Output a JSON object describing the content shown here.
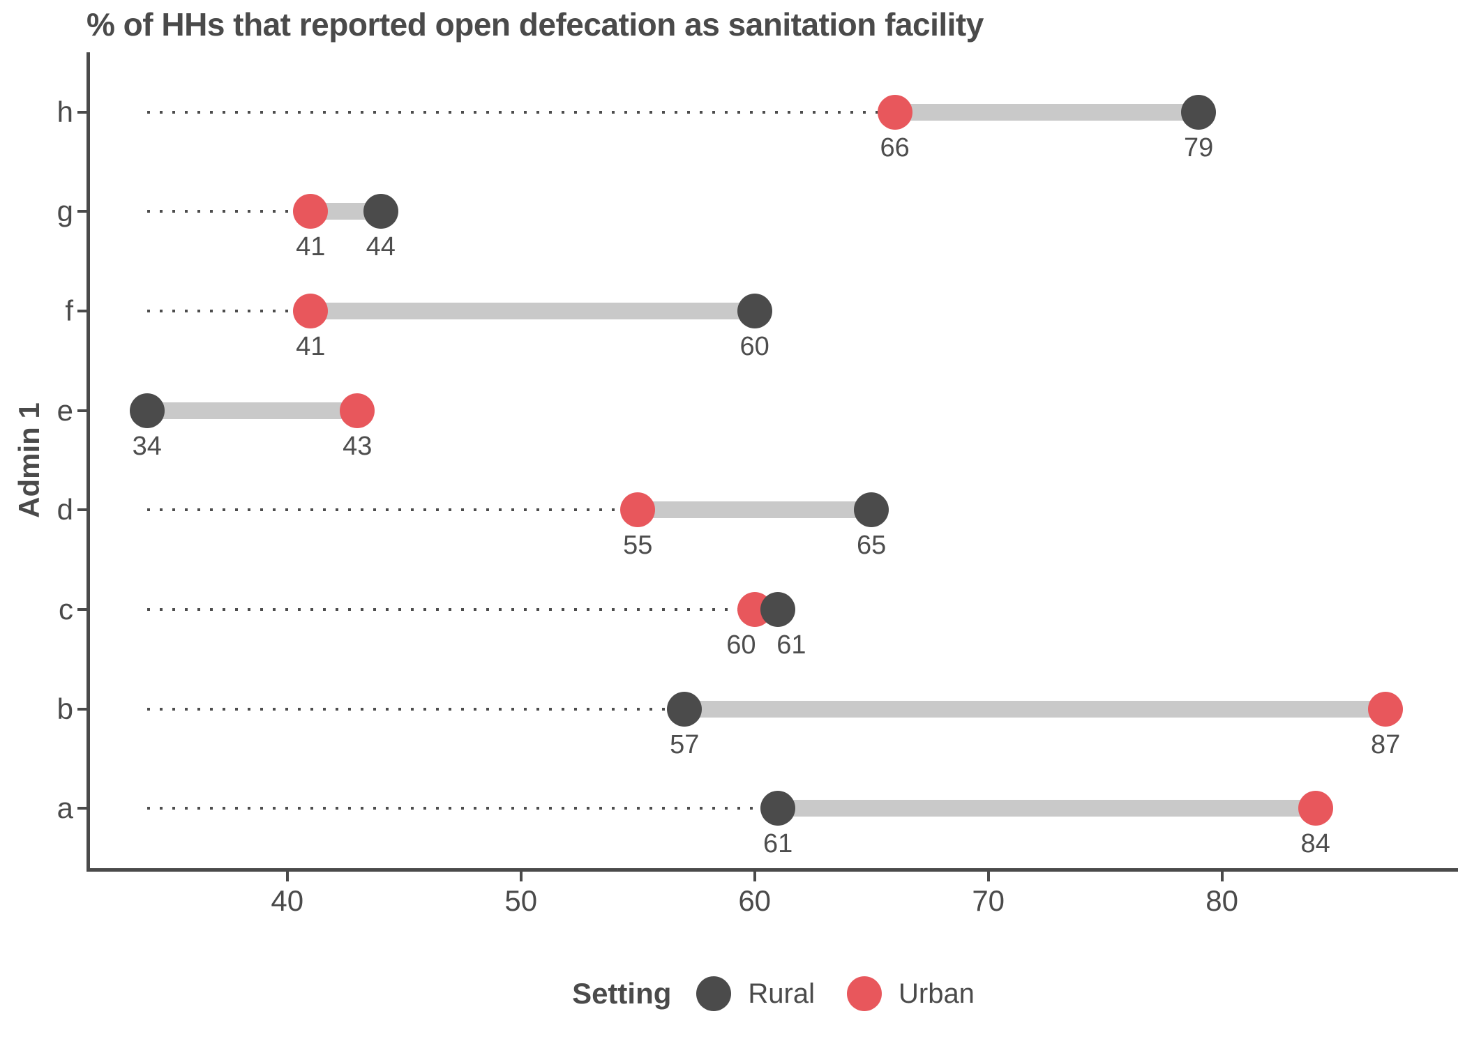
{
  "title": "% of HHs that reported open defecation as sanitation facility",
  "y_axis": {
    "label": "Admin 1",
    "categories": [
      "h",
      "g",
      "f",
      "e",
      "d",
      "c",
      "b",
      "a"
    ]
  },
  "x_axis": {
    "tick_labels": [
      "40",
      "50",
      "60",
      "70",
      "80"
    ],
    "tick_values": [
      40,
      50,
      60,
      70,
      80
    ]
  },
  "legend": {
    "title": "Setting",
    "items": [
      {
        "label": "Rural",
        "color": "#4b4b4b"
      },
      {
        "label": "Urban",
        "color": "#e8575c"
      }
    ]
  },
  "colors": {
    "rural": "#4b4b4b",
    "urban": "#e8575c",
    "connector": "#c9c9c9",
    "leader": "#4d4d4d",
    "axis": "#4a4a4a",
    "text": "#4a4a4a"
  },
  "chart_data": {
    "type": "dumbbell",
    "orientation": "horizontal",
    "title": "% of HHs that reported open defecation as sanitation facility",
    "ylabel": "Admin 1",
    "categories": [
      "h",
      "g",
      "f",
      "e",
      "d",
      "c",
      "b",
      "a"
    ],
    "series": [
      {
        "name": "Rural",
        "values": [
          79,
          44,
          60,
          34,
          65,
          61,
          57,
          61
        ]
      },
      {
        "name": "Urban",
        "values": [
          66,
          41,
          41,
          43,
          55,
          60,
          87,
          84
        ]
      }
    ],
    "xlim": [
      31.5,
      90.1
    ],
    "leader_line_start": 34,
    "value_labels_shown": true,
    "grid": false,
    "legend_position": "bottom"
  }
}
